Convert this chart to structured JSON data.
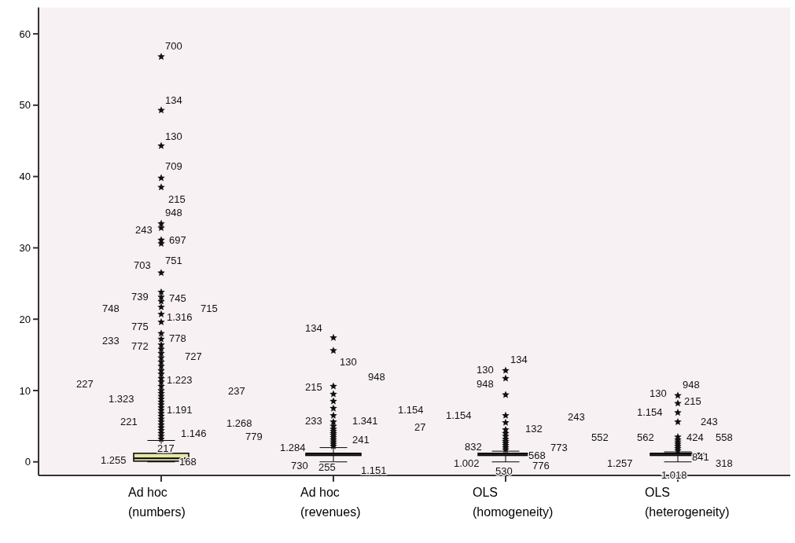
{
  "chart_data": {
    "type": "box",
    "categories": [
      "Ad hoc\n(numbers)",
      "Ad hoc\n(revenues)",
      "OLS\n(homogeneity)",
      "OLS\n(heterogeneity)"
    ],
    "boxes": [
      {
        "low": 0,
        "q1": 0.1,
        "median": 0.5,
        "q3": 1.2,
        "high": 3,
        "outliers": [
          3.2,
          3.6,
          4,
          4.4,
          4.8,
          5.2,
          5.6,
          6,
          6.4,
          6.8,
          7.2,
          7.6,
          8,
          8.4,
          8.8,
          9.2,
          9.6,
          10,
          10.6,
          11.2,
          11.7,
          12.3,
          12.8,
          13.4,
          14,
          14.6,
          15.2,
          15.8,
          16.4,
          17.2,
          18,
          19.6,
          20.7,
          21.7,
          22.5,
          23.1,
          23.8,
          26.5,
          30.6,
          31.1,
          32.8,
          33.4,
          38.5,
          39.8,
          44.3,
          49.3,
          56.8
        ]
      },
      {
        "low": 0,
        "q1": 0.9,
        "median": 1.1,
        "q3": 1.2,
        "high": 2,
        "outliers": [
          2.2,
          2.5,
          2.8,
          3.1,
          3.4,
          3.7,
          4,
          4.3,
          4.6,
          5,
          5.6,
          6.5,
          7.5,
          8.5,
          9.5,
          10.6,
          15.6,
          17.4
        ]
      },
      {
        "low": 0,
        "q1": 0.9,
        "median": 1.1,
        "q3": 1.2,
        "high": 1.5,
        "outliers": [
          1.7,
          2,
          2.3,
          2.6,
          2.9,
          3.2,
          3.6,
          4,
          4.5,
          5.5,
          6.5,
          9.4,
          11.7,
          12.8
        ]
      },
      {
        "low": 0,
        "q1": 0.9,
        "median": 1.1,
        "q3": 1.2,
        "high": 1.4,
        "outliers": [
          1.6,
          1.9,
          2.2,
          2.5,
          2.8,
          3.1,
          3.5,
          5.6,
          6.9,
          8.2,
          9.3
        ]
      }
    ],
    "ylim": [
      -1.9,
      63.7
    ],
    "yticks": [
      0,
      10,
      20,
      30,
      40,
      50,
      60
    ],
    "marker": "star",
    "grid": false,
    "annotations": [
      "700",
      "134",
      "130",
      "709",
      "215",
      "948",
      "243",
      "697",
      "703",
      "751",
      "739",
      "745",
      "748",
      "715",
      "775",
      "1.316",
      "233",
      "778",
      "772",
      "727",
      "227",
      "1.223",
      "1.323",
      "237",
      "221",
      "1.191",
      "1.268",
      "1.146",
      "217",
      "779",
      "1.255",
      "168",
      "134",
      "130",
      "215",
      "948",
      "233",
      "1.341",
      "1.154",
      "27",
      "1.284",
      "241",
      "730",
      "255",
      "1.151",
      "130",
      "134",
      "948",
      "1.154",
      "243",
      "132",
      "552",
      "832",
      "568",
      "773",
      "1.002",
      "530",
      "776",
      "130",
      "948",
      "1.154",
      "215",
      "243",
      "562",
      "424",
      "558",
      "1.257",
      "841",
      "1.018",
      "318"
    ]
  }
}
